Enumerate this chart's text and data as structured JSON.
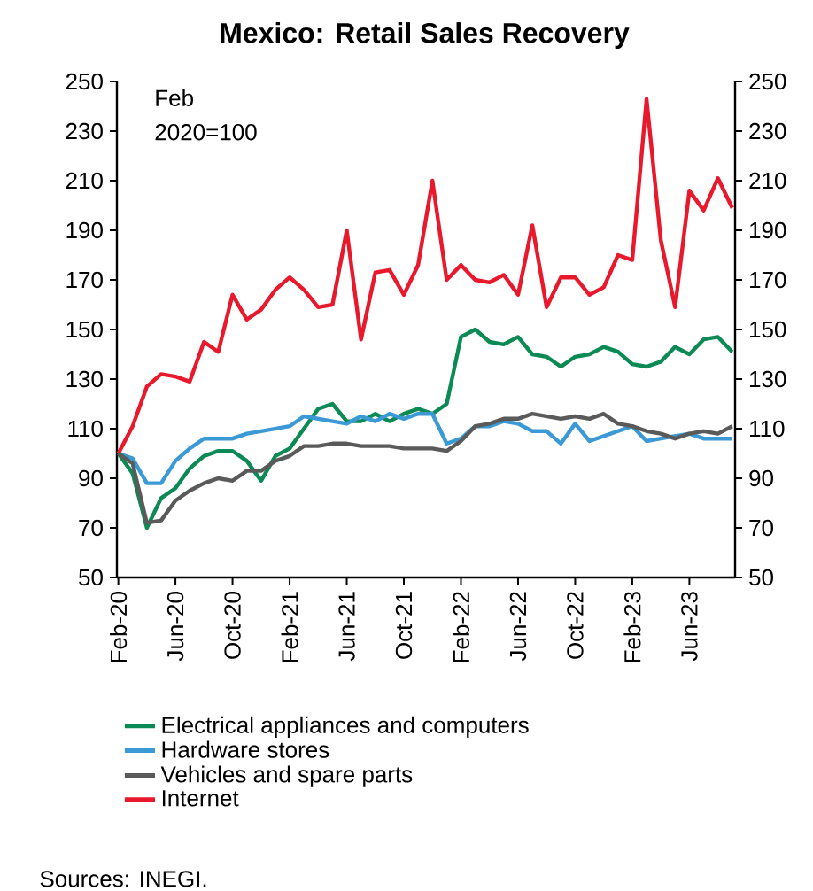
{
  "chart_data": {
    "type": "line",
    "title": "Mexico: Retail Sales Recovery",
    "annotations": [
      "Feb",
      "2020=100",
      "Sources: INEGI."
    ],
    "categories": [
      "Feb-20",
      null,
      null,
      null,
      "Jun-20",
      null,
      null,
      null,
      "Oct-20",
      null,
      null,
      null,
      "Feb-21",
      null,
      null,
      null,
      "Jun-21",
      null,
      null,
      null,
      "Oct-21",
      null,
      null,
      null,
      "Feb-22",
      null,
      null,
      null,
      "Jun-22",
      null,
      null,
      null,
      "Oct-22",
      null,
      null,
      null,
      "Feb-23",
      null,
      null,
      null,
      "Jun-23",
      null,
      null,
      null
    ],
    "series": [
      {
        "name": "Electrical appliances and computers",
        "color": "#0b8a55",
        "values": [
          100,
          92,
          70,
          82,
          86,
          94,
          99,
          101,
          101,
          97,
          89,
          99,
          102,
          110,
          118,
          120,
          113,
          113,
          116,
          113,
          116,
          118,
          116,
          120,
          147,
          150,
          145,
          144,
          147,
          140,
          139,
          135,
          139,
          140,
          143,
          141,
          136,
          135,
          137,
          143,
          140,
          146,
          147,
          141
        ]
      },
      {
        "name": "Hardware stores",
        "color": "#3b9ad6",
        "values": [
          100,
          98,
          88,
          88,
          97,
          102,
          106,
          106,
          106,
          108,
          109,
          110,
          111,
          115,
          114,
          113,
          112,
          115,
          113,
          116,
          114,
          116,
          116,
          104,
          106,
          111,
          111,
          113,
          112,
          109,
          109,
          104,
          112,
          105,
          107,
          109,
          111,
          105,
          106,
          107,
          108,
          106,
          106,
          106
        ]
      },
      {
        "name": "Vehicles and spare parts",
        "color": "#5a5a5a",
        "values": [
          100,
          96,
          72,
          73,
          81,
          85,
          88,
          90,
          89,
          93,
          93,
          97,
          99,
          103,
          103,
          104,
          104,
          103,
          103,
          103,
          102,
          102,
          102,
          101,
          105,
          111,
          112,
          114,
          114,
          116,
          115,
          114,
          115,
          114,
          116,
          112,
          111,
          109,
          108,
          106,
          108,
          109,
          108,
          111
        ]
      },
      {
        "name": "Internet",
        "color": "#e8192c",
        "values": [
          100,
          111,
          127,
          132,
          131,
          129,
          145,
          141,
          164,
          154,
          158,
          166,
          171,
          166,
          159,
          160,
          190,
          146,
          173,
          174,
          164,
          176,
          210,
          170,
          176,
          170,
          169,
          172,
          164,
          192,
          159,
          171,
          171,
          164,
          167,
          180,
          178,
          243,
          186,
          159,
          206,
          198,
          211,
          199
        ]
      }
    ],
    "ylim": [
      50,
      250
    ],
    "yticks": [
      50,
      70,
      90,
      110,
      130,
      150,
      170,
      190,
      210,
      230,
      250
    ],
    "y2lim": [
      50,
      250
    ],
    "y2ticks": [
      50,
      70,
      90,
      110,
      130,
      150,
      170,
      190,
      210,
      230,
      250
    ],
    "legend": "bottom",
    "grid": false,
    "marker": "none",
    "line_style": "solid"
  }
}
